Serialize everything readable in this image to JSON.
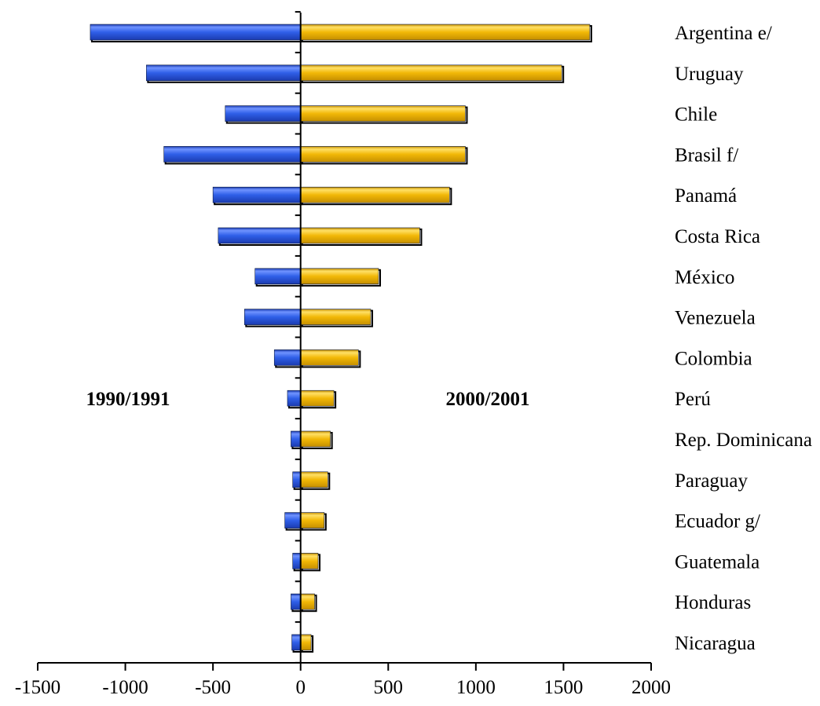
{
  "chart_data": {
    "type": "bar",
    "orientation": "horizontal",
    "stacking": "diverging",
    "categories": [
      "Argentina e/",
      "Uruguay",
      "Chile",
      "Brasil f/",
      "Panamá",
      "Costa Rica",
      "México",
      "Venezuela",
      "Colombia",
      "Perú",
      "Rep. Dominicana",
      "Paraguay",
      "Ecuador g/",
      "Guatemala",
      "Honduras",
      "Nicaragua"
    ],
    "series": [
      {
        "name": "1990/1991",
        "color": "#2f5fe8",
        "values": [
          -1200,
          -880,
          -430,
          -780,
          -500,
          -470,
          -260,
          -320,
          -150,
          -75,
          -55,
          -45,
          -90,
          -45,
          -55,
          -50
        ]
      },
      {
        "name": "2000/2001",
        "color": "#f2b807",
        "values": [
          1650,
          1490,
          940,
          940,
          850,
          680,
          445,
          400,
          330,
          190,
          170,
          155,
          135,
          100,
          80,
          60
        ]
      }
    ],
    "side_labels": [
      "1990/1991",
      "2000/2001"
    ],
    "xlim": [
      -1500,
      2000
    ],
    "xticks": [
      -1500,
      -1000,
      -500,
      0,
      500,
      1000,
      1500,
      2000
    ],
    "xtick_labels": [
      "-1500",
      "-1000",
      "-500",
      "0",
      "500",
      "1000",
      "1500",
      "2000"
    ],
    "title": "",
    "xlabel": "",
    "ylabel": "",
    "grid": false,
    "legend": "none"
  }
}
